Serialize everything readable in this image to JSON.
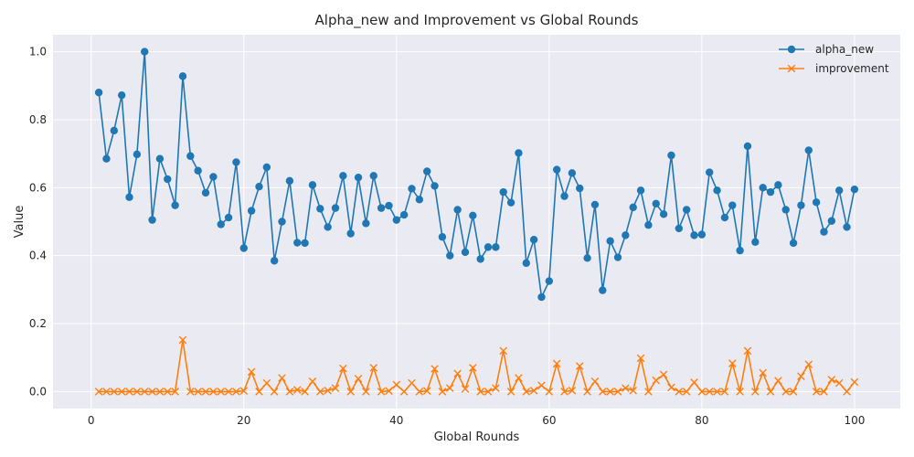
{
  "chart_data": {
    "type": "line",
    "title": "Alpha_new and Improvement vs Global Rounds",
    "xlabel": "Global Rounds",
    "ylabel": "Value",
    "xlim": [
      -5,
      106
    ],
    "ylim": [
      -0.05,
      1.05
    ],
    "xticks": [
      0,
      20,
      40,
      60,
      80,
      100
    ],
    "yticks": [
      0.0,
      0.2,
      0.4,
      0.6,
      0.8,
      1.0
    ],
    "grid": true,
    "legend_position": "upper right",
    "series": [
      {
        "name": "alpha_new",
        "color": "#1f77b4",
        "marker": "circle",
        "x": [
          1,
          2,
          3,
          4,
          5,
          6,
          7,
          8,
          9,
          10,
          11,
          12,
          13,
          14,
          15,
          16,
          17,
          18,
          19,
          20,
          21,
          22,
          23,
          24,
          25,
          26,
          27,
          28,
          29,
          30,
          31,
          32,
          33,
          34,
          35,
          36,
          37,
          38,
          39,
          40,
          41,
          42,
          43,
          44,
          45,
          46,
          47,
          48,
          49,
          50,
          51,
          52,
          53,
          54,
          55,
          56,
          57,
          58,
          59,
          60,
          61,
          62,
          63,
          64,
          65,
          66,
          67,
          68,
          69,
          70,
          71,
          72,
          73,
          74,
          75,
          76,
          77,
          78,
          79,
          80,
          81,
          82,
          83,
          84,
          85,
          86,
          87,
          88,
          89,
          90,
          91,
          92,
          93,
          94,
          95,
          96,
          97,
          98,
          99,
          100
        ],
        "values": [
          0.88,
          0.685,
          0.768,
          0.872,
          0.572,
          0.698,
          1.0,
          0.505,
          0.685,
          0.625,
          0.548,
          0.928,
          0.693,
          0.65,
          0.585,
          0.632,
          0.492,
          0.512,
          0.675,
          0.422,
          0.532,
          0.603,
          0.66,
          0.385,
          0.5,
          0.62,
          0.438,
          0.437,
          0.608,
          0.538,
          0.484,
          0.54,
          0.635,
          0.465,
          0.63,
          0.495,
          0.635,
          0.54,
          0.547,
          0.505,
          0.52,
          0.597,
          0.565,
          0.648,
          0.605,
          0.455,
          0.4,
          0.535,
          0.41,
          0.518,
          0.39,
          0.425,
          0.425,
          0.587,
          0.556,
          0.702,
          0.378,
          0.447,
          0.278,
          0.325,
          0.653,
          0.575,
          0.643,
          0.598,
          0.393,
          0.55,
          0.298,
          0.443,
          0.395,
          0.46,
          0.542,
          0.592,
          0.49,
          0.553,
          0.522,
          0.695,
          0.48,
          0.535,
          0.46,
          0.462,
          0.645,
          0.592,
          0.512,
          0.548,
          0.415,
          0.722,
          0.44,
          0.6,
          0.587,
          0.608,
          0.535,
          0.437,
          0.548,
          0.71,
          0.557,
          0.47,
          0.502,
          0.592,
          0.484,
          0.595
        ]
      },
      {
        "name": "improvement",
        "color": "#ff7f0e",
        "marker": "x",
        "x": [
          1,
          2,
          3,
          4,
          5,
          6,
          7,
          8,
          9,
          10,
          11,
          12,
          13,
          14,
          15,
          16,
          17,
          18,
          19,
          20,
          21,
          22,
          23,
          24,
          25,
          26,
          27,
          28,
          29,
          30,
          31,
          32,
          33,
          34,
          35,
          36,
          37,
          38,
          39,
          40,
          41,
          42,
          43,
          44,
          45,
          46,
          47,
          48,
          49,
          50,
          51,
          52,
          53,
          54,
          55,
          56,
          57,
          58,
          59,
          60,
          61,
          62,
          63,
          64,
          65,
          66,
          67,
          68,
          69,
          70,
          71,
          72,
          73,
          74,
          75,
          76,
          77,
          78,
          79,
          80,
          81,
          82,
          83,
          84,
          85,
          86,
          87,
          88,
          89,
          90,
          91,
          92,
          93,
          94,
          95,
          96,
          97,
          98,
          99,
          100
        ],
        "values": [
          0,
          0,
          0,
          0,
          0,
          0,
          0,
          0,
          0,
          0,
          0,
          0.152,
          0,
          0,
          0,
          0,
          0,
          0,
          0,
          0.002,
          0.058,
          0,
          0.025,
          0,
          0.04,
          0,
          0.005,
          0,
          0.03,
          0,
          0.003,
          0.01,
          0.068,
          0,
          0.038,
          0,
          0.07,
          0,
          0.002,
          0.02,
          0,
          0.025,
          0,
          0.002,
          0.067,
          0,
          0.01,
          0.053,
          0.008,
          0.07,
          0,
          0,
          0.01,
          0.12,
          0,
          0.04,
          0,
          0.003,
          0.018,
          0,
          0.082,
          0,
          0.003,
          0.075,
          0,
          0.03,
          0,
          0,
          0,
          0.01,
          0.003,
          0.098,
          0,
          0.033,
          0.05,
          0.012,
          0,
          0,
          0.027,
          0,
          0,
          0,
          0,
          0.083,
          0,
          0.12,
          0,
          0.055,
          0,
          0.032,
          0,
          0,
          0.045,
          0.08,
          0,
          0,
          0.035,
          0.025,
          0,
          0.028
        ]
      }
    ]
  }
}
